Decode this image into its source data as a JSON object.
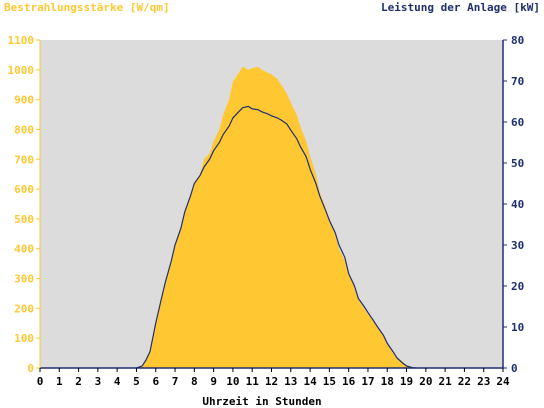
{
  "chart_data": {
    "type": "area",
    "title_left": "Bestrahlungsstärke [W/qm]",
    "title_right": "Leistung der Anlage [kW]",
    "xlabel": "Uhrzeit in Stunden",
    "x_range": [
      0,
      24
    ],
    "x_ticks": [
      "0",
      "1",
      "2",
      "3",
      "4",
      "5",
      "6",
      "7",
      "8",
      "9",
      "10",
      "11",
      "12",
      "13",
      "14",
      "15",
      "16",
      "17",
      "18",
      "19",
      "20",
      "21",
      "22",
      "23",
      "24"
    ],
    "y_left_range": [
      0,
      1100
    ],
    "y_left_ticks": [
      "0",
      "100",
      "200",
      "300",
      "400",
      "500",
      "600",
      "700",
      "800",
      "900",
      "1000",
      "1100"
    ],
    "y_right_range": [
      0,
      80
    ],
    "y_right_ticks": [
      "0",
      "10",
      "20",
      "30",
      "40",
      "50",
      "60",
      "70",
      "80"
    ],
    "grid": false,
    "colors": {
      "plot_bg": "#dcdcdc",
      "irradiance_fill": "#ffc832",
      "power_line": "#1f2f6e",
      "left_axis": "#ffc832",
      "right_axis": "#1f2f6e"
    },
    "series": [
      {
        "axis": "left",
        "style": "area",
        "x": [
          5.0,
          5.3,
          5.5,
          5.7,
          6.0,
          6.3,
          6.5,
          6.8,
          7.0,
          7.3,
          7.5,
          7.8,
          8.0,
          8.3,
          8.5,
          8.8,
          9.0,
          9.3,
          9.5,
          9.8,
          10.0,
          10.3,
          10.5,
          10.8,
          11.0,
          11.3,
          11.5,
          11.8,
          12.0,
          12.3,
          12.5,
          12.8,
          13.0,
          13.3,
          13.5,
          13.8,
          14.0,
          14.3,
          14.5,
          14.8,
          15.0,
          15.3,
          15.5,
          15.8,
          16.0,
          16.3,
          16.5,
          16.8,
          17.0,
          17.3,
          17.5,
          17.8,
          18.0,
          18.3,
          18.5,
          18.8,
          19.0,
          19.3,
          19.5
        ],
        "values": [
          0,
          10,
          30,
          60,
          150,
          230,
          290,
          360,
          410,
          470,
          520,
          580,
          620,
          650,
          700,
          720,
          760,
          800,
          850,
          900,
          960,
          990,
          1010,
          1000,
          1005,
          1010,
          1000,
          990,
          985,
          970,
          950,
          920,
          890,
          850,
          810,
          760,
          710,
          650,
          590,
          540,
          500,
          450,
          400,
          360,
          320,
          270,
          230,
          200,
          180,
          160,
          140,
          110,
          80,
          50,
          35,
          20,
          10,
          3,
          0
        ]
      },
      {
        "axis": "right",
        "style": "line",
        "x": [
          5.0,
          5.3,
          5.5,
          5.7,
          6.0,
          6.3,
          6.5,
          6.8,
          7.0,
          7.3,
          7.5,
          7.8,
          8.0,
          8.3,
          8.5,
          8.8,
          9.0,
          9.3,
          9.5,
          9.8,
          10.0,
          10.3,
          10.5,
          10.8,
          11.0,
          11.3,
          11.5,
          11.8,
          12.0,
          12.3,
          12.5,
          12.8,
          13.0,
          13.3,
          13.5,
          13.8,
          14.0,
          14.3,
          14.5,
          14.8,
          15.0,
          15.3,
          15.5,
          15.8,
          16.0,
          16.3,
          16.5,
          16.8,
          17.0,
          17.3,
          17.5,
          17.8,
          18.0,
          18.3,
          18.5,
          18.8,
          19.0,
          19.3,
          19.5
        ],
        "values": [
          0,
          0.5,
          2,
          4,
          11,
          17,
          21,
          26,
          30,
          34,
          38,
          42,
          45,
          47,
          49,
          51,
          53,
          55,
          57,
          59,
          61,
          62.5,
          63.5,
          63.8,
          63.2,
          63,
          62.5,
          62,
          61.5,
          61,
          60.5,
          59.5,
          58,
          56,
          54,
          51.5,
          48.5,
          45,
          42,
          38.5,
          36,
          33,
          30,
          27,
          23,
          20,
          17,
          15,
          13.5,
          11.5,
          10,
          8,
          6,
          4,
          2.5,
          1.2,
          0.5,
          0.1,
          0
        ]
      }
    ]
  }
}
